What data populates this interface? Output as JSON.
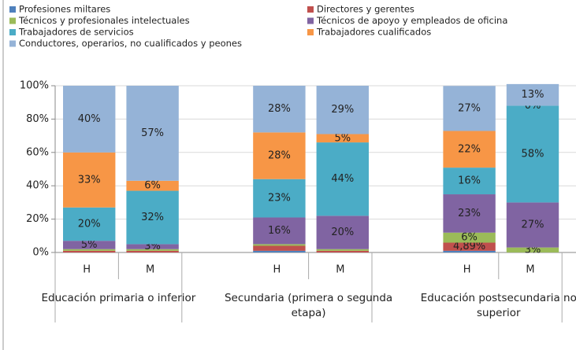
{
  "chart_data": {
    "type": "stacked_bar",
    "categories": [
      "H",
      "M",
      "H",
      "M",
      "H",
      "M"
    ],
    "groups": [
      "Educación primaria o inferior",
      "Secundaria (primera o segunda etapa)",
      "Educación postsecundaria no superior"
    ],
    "series": [
      {
        "name": "Profesiones miltares",
        "color": "#4f81bd",
        "values": [
          0,
          0,
          1,
          0,
          1,
          0
        ]
      },
      {
        "name": "Directores y gerentes",
        "color": "#c0504d",
        "values": [
          1,
          1,
          3,
          1,
          4.89,
          0
        ],
        "value_labels": [
          null,
          null,
          null,
          null,
          "4,89%",
          null
        ]
      },
      {
        "name": "Técnicos y profesionales intelectuales",
        "color": "#9bbb59",
        "values": [
          1,
          1,
          1,
          1,
          6,
          3
        ],
        "value_labels": [
          null,
          null,
          null,
          null,
          "6%",
          "3%"
        ]
      },
      {
        "name": "Técnicos de apoyo y empleados de oficina",
        "color": "#8064a2",
        "values": [
          5,
          3,
          16,
          20,
          23,
          27
        ],
        "value_labels": [
          "5%",
          "3%",
          "16%",
          "20%",
          "23%",
          "27%"
        ]
      },
      {
        "name": "Trabajadores de servicios",
        "color": "#4bacc6",
        "values": [
          20,
          32,
          23,
          44,
          16,
          58
        ],
        "value_labels": [
          "20%",
          "32%",
          "23%",
          "44%",
          "16%",
          "58%"
        ]
      },
      {
        "name": "Trabajadores cualificados",
        "color": "#f79646",
        "values": [
          33,
          6,
          28,
          5,
          22,
          0
        ],
        "value_labels": [
          "33%",
          "6%",
          "28%",
          "5%",
          "22%",
          "0%"
        ]
      },
      {
        "name": "Conductores, operarios, no cualificados y peones",
        "color": "#95b3d7",
        "values": [
          40,
          57,
          28,
          29,
          27,
          13
        ],
        "value_labels": [
          "40%",
          "57%",
          "28%",
          "29%",
          "27%",
          "13%"
        ]
      }
    ],
    "ylim": [
      0,
      100
    ],
    "yticks": [
      {
        "value": 0,
        "label": "0%"
      },
      {
        "value": 20,
        "label": "20%"
      },
      {
        "value": 40,
        "label": "40%"
      },
      {
        "value": 60,
        "label": "60%"
      },
      {
        "value": 80,
        "label": "80%"
      },
      {
        "value": 100,
        "label": "100%"
      }
    ],
    "grid": true
  }
}
